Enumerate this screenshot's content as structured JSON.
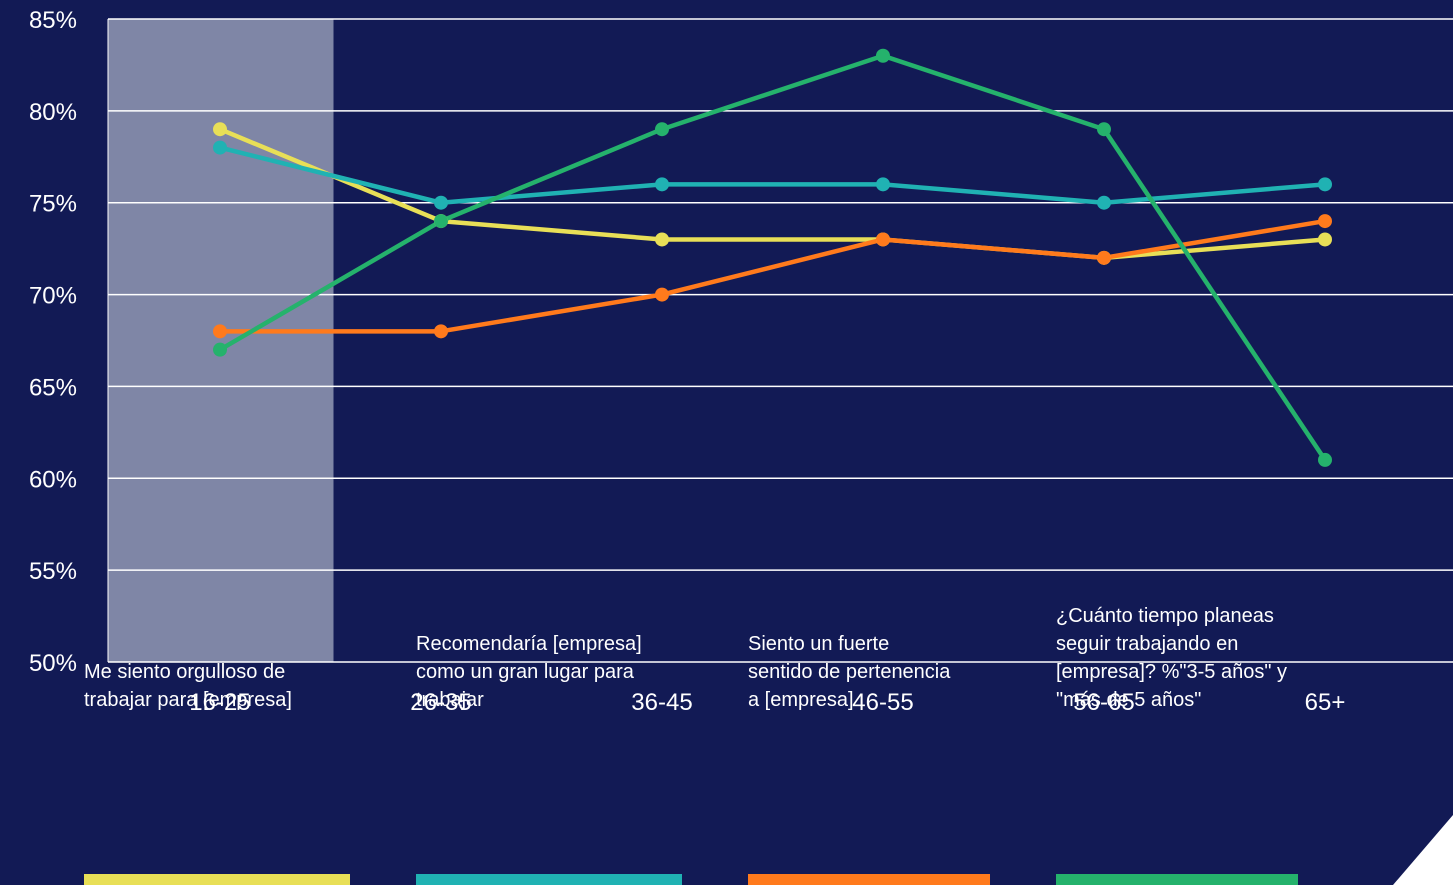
{
  "chart_data": {
    "type": "line",
    "categories": [
      "16-25",
      "26-35",
      "36-45",
      "46-55",
      "56-65",
      "65+"
    ],
    "y_ticks": [
      "50%",
      "55%",
      "60%",
      "65%",
      "70%",
      "75%",
      "80%",
      "85%"
    ],
    "ylim": [
      50,
      85
    ],
    "grid": true,
    "highlight_category": "16-25",
    "legend_position": "bottom",
    "series": [
      {
        "name": "Me siento orgulloso de\ntrabajar para [empresa]",
        "color": "#e8df57",
        "values": [
          79,
          74,
          73,
          73,
          72,
          73
        ]
      },
      {
        "name": "Recomendaría [empresa]\ncomo un gran lugar para\ntrabajar",
        "color": "#20b2b3",
        "values": [
          78,
          75,
          76,
          76,
          75,
          76
        ]
      },
      {
        "name": "Siento un fuerte\nsentido de pertenencia\na [empresa]",
        "color": "#ff7a1c",
        "values": [
          68,
          68,
          70,
          73,
          72,
          74
        ]
      },
      {
        "name": "¿Cuánto tiempo planeas\nseguir trabajando en\n[empresa]? %\"3-5 años\" y\n\"más de 5 años\"",
        "color": "#25b26c",
        "values": [
          67,
          74,
          79,
          83,
          79,
          61
        ]
      }
    ]
  }
}
